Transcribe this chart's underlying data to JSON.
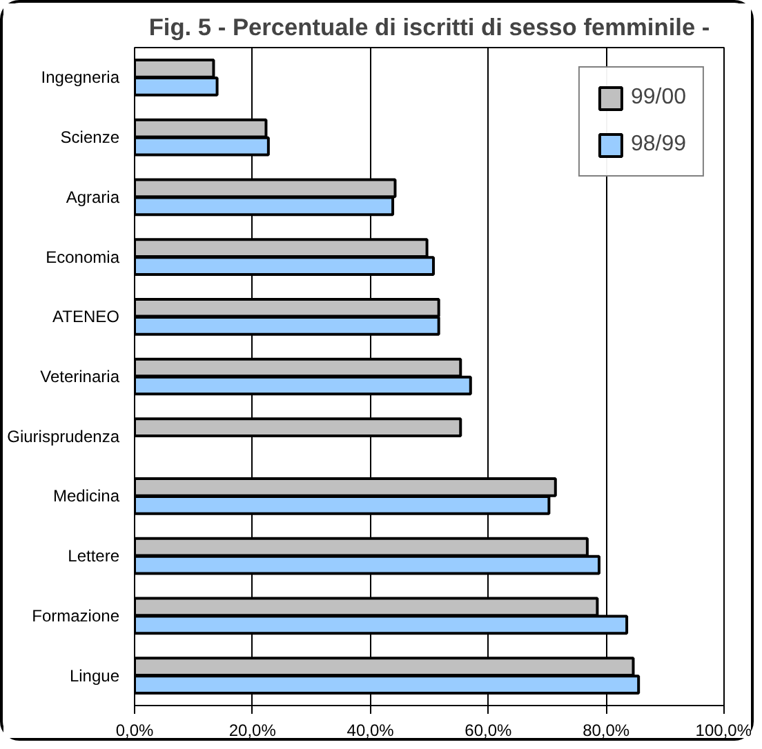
{
  "chart_data": {
    "type": "bar",
    "orientation": "horizontal",
    "title": "Fig. 5 - Percentuale di iscritti di sesso femminile -",
    "categories": [
      "Ingegneria",
      "Scienze",
      "Agraria",
      "Economia",
      "ATENEO",
      "Veterinaria",
      "Giurisprudenza",
      "Medicina",
      "Lettere",
      "Formazione",
      "Lingue"
    ],
    "series": [
      {
        "name": "99/00",
        "color": "#c0c0c0",
        "values": [
          13.4,
          22.3,
          44.2,
          49.6,
          51.6,
          55.3,
          55.3,
          71.4,
          76.8,
          78.5,
          84.6
        ]
      },
      {
        "name": "98/99",
        "color": "#99ccff",
        "values": [
          14.0,
          22.7,
          43.8,
          50.7,
          51.6,
          57.0,
          null,
          70.3,
          78.8,
          83.5,
          85.5
        ]
      }
    ],
    "xlim": [
      0,
      100
    ],
    "xticks": [
      {
        "value": 0,
        "label": "0,0%"
      },
      {
        "value": 20,
        "label": "20,0%"
      },
      {
        "value": 40,
        "label": "40,0%"
      },
      {
        "value": 60,
        "label": "60,0%"
      },
      {
        "value": 80,
        "label": "80,0%"
      },
      {
        "value": 100,
        "label": "100,0%"
      }
    ],
    "grid": "x",
    "legend": "top right"
  }
}
